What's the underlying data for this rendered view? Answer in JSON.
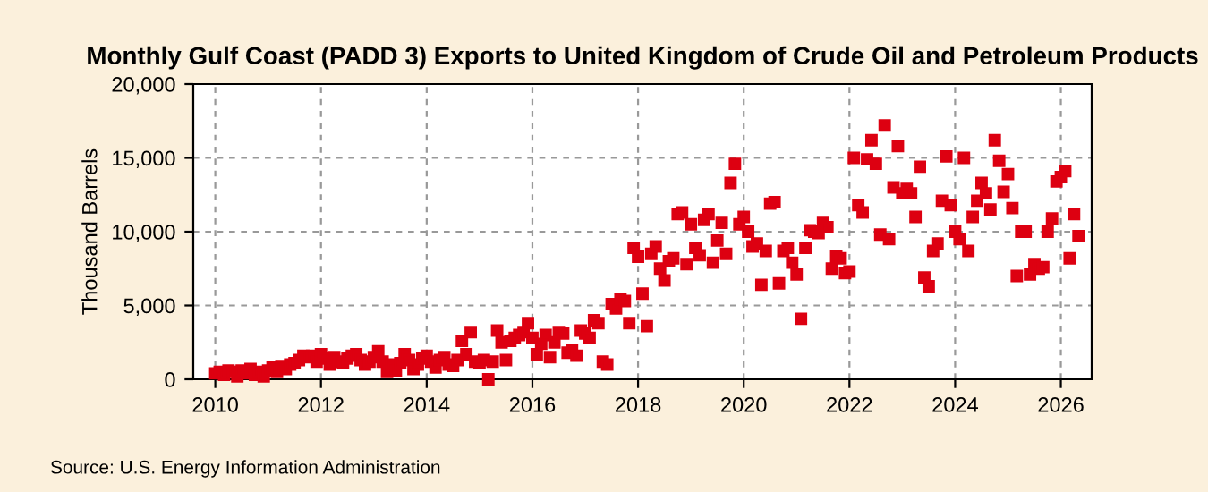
{
  "chart_data": {
    "type": "scatter",
    "title": "Monthly Gulf Coast (PADD 3) Exports to United Kingdom of Crude Oil and Petroleum Products",
    "ylabel": "Thousand Barrels",
    "annotations": [
      "Source: U.S. Energy Information Administration"
    ],
    "x": [
      "2010-01",
      "2010-02",
      "2010-03",
      "2010-04",
      "2010-05",
      "2010-06",
      "2010-07",
      "2010-08",
      "2010-09",
      "2010-10",
      "2010-11",
      "2010-12",
      "2011-01",
      "2011-02",
      "2011-03",
      "2011-04",
      "2011-05",
      "2011-06",
      "2011-07",
      "2011-08",
      "2011-09",
      "2011-10",
      "2011-11",
      "2011-12",
      "2012-01",
      "2012-02",
      "2012-03",
      "2012-04",
      "2012-05",
      "2012-06",
      "2012-07",
      "2012-08",
      "2012-09",
      "2012-10",
      "2012-11",
      "2012-12",
      "2013-01",
      "2013-02",
      "2013-03",
      "2013-04",
      "2013-05",
      "2013-06",
      "2013-07",
      "2013-08",
      "2013-09",
      "2013-10",
      "2013-11",
      "2013-12",
      "2014-01",
      "2014-02",
      "2014-03",
      "2014-04",
      "2014-05",
      "2014-06",
      "2014-07",
      "2014-08",
      "2014-09",
      "2014-10",
      "2014-11",
      "2014-12",
      "2015-01",
      "2015-02",
      "2015-03",
      "2015-04",
      "2015-05",
      "2015-06",
      "2015-07",
      "2015-08",
      "2015-09",
      "2015-10",
      "2015-11",
      "2015-12",
      "2016-01",
      "2016-02",
      "2016-03",
      "2016-04",
      "2016-05",
      "2016-06",
      "2016-07",
      "2016-08",
      "2016-09",
      "2016-10",
      "2016-11",
      "2016-12",
      "2017-01",
      "2017-02",
      "2017-03",
      "2017-04",
      "2017-05",
      "2017-06",
      "2017-07",
      "2017-08",
      "2017-09",
      "2017-10",
      "2017-11",
      "2017-12",
      "2018-01",
      "2018-02",
      "2018-03",
      "2018-04",
      "2018-05",
      "2018-06",
      "2018-07",
      "2018-08",
      "2018-09",
      "2018-10",
      "2018-11",
      "2018-12",
      "2019-01",
      "2019-02",
      "2019-03",
      "2019-04",
      "2019-05",
      "2019-06",
      "2019-07",
      "2019-08",
      "2019-09",
      "2019-10",
      "2019-11",
      "2019-12",
      "2020-01",
      "2020-02",
      "2020-03",
      "2020-04",
      "2020-05",
      "2020-06",
      "2020-07",
      "2020-08",
      "2020-09",
      "2020-10",
      "2020-11",
      "2020-12",
      "2021-01",
      "2021-02",
      "2021-03",
      "2021-04",
      "2021-05",
      "2021-06",
      "2021-07",
      "2021-08",
      "2021-09",
      "2021-10",
      "2021-11",
      "2021-12",
      "2022-01",
      "2022-02",
      "2022-03",
      "2022-04",
      "2022-05",
      "2022-06",
      "2022-07",
      "2022-08",
      "2022-09",
      "2022-10",
      "2022-11",
      "2022-12",
      "2023-01",
      "2023-02",
      "2023-03",
      "2023-04",
      "2023-05",
      "2023-06",
      "2023-07",
      "2023-08",
      "2023-09",
      "2023-10",
      "2023-11",
      "2023-12",
      "2024-01",
      "2024-02",
      "2024-03",
      "2024-04",
      "2024-05",
      "2024-06",
      "2024-07",
      "2024-08",
      "2024-09",
      "2024-10",
      "2024-11",
      "2024-12",
      "2025-01",
      "2025-02",
      "2025-03",
      "2025-04",
      "2025-05",
      "2025-06",
      "2025-07",
      "2025-08",
      "2025-09",
      "2025-10",
      "2025-11",
      "2025-12",
      "2026-01",
      "2026-02",
      "2026-03",
      "2026-04",
      "2026-05"
    ],
    "series": [
      {
        "color": "#dd0011",
        "values": [
          400,
          500,
          300,
          600,
          500,
          200,
          600,
          400,
          700,
          300,
          500,
          200,
          600,
          800,
          500,
          900,
          700,
          1000,
          1100,
          1300,
          1600,
          1500,
          1600,
          1200,
          1700,
          1400,
          1000,
          1500,
          1200,
          1100,
          1400,
          1600,
          1700,
          1300,
          1000,
          1200,
          1500,
          1900,
          1200,
          500,
          1000,
          600,
          1100,
          1700,
          1300,
          700,
          1000,
          1400,
          1600,
          1200,
          800,
          1300,
          1500,
          1000,
          900,
          1300,
          2600,
          1700,
          3200,
          1200,
          1100,
          1300,
          0,
          1200,
          3300,
          2500,
          1300,
          2600,
          2800,
          3000,
          3200,
          3800,
          2800,
          1700,
          2400,
          3000,
          1500,
          2500,
          3200,
          3100,
          1800,
          2000,
          1600,
          3300,
          3100,
          2800,
          4000,
          3800,
          1200,
          1000,
          5100,
          4800,
          5400,
          5300,
          3800,
          8900,
          8300,
          5800,
          3600,
          8500,
          9000,
          7500,
          6700,
          8000,
          8200,
          11200,
          11300,
          7800,
          10500,
          8900,
          8400,
          10800,
          11200,
          7900,
          9400,
          10600,
          8500,
          13300,
          14600,
          10500,
          11000,
          10000,
          9000,
          9200,
          6400,
          8700,
          11900,
          12000,
          6500,
          8700,
          8900,
          7900,
          7100,
          4100,
          8900,
          10100,
          10000,
          9900,
          10600,
          10300,
          7500,
          8300,
          8200,
          7200,
          7300,
          15000,
          11800,
          11300,
          14900,
          16200,
          14600,
          9800,
          17200,
          9500,
          13000,
          15800,
          12600,
          12900,
          12600,
          11000,
          14400,
          6900,
          6300,
          8700,
          9200,
          12100,
          15100,
          11800,
          10000,
          9500,
          15000,
          8700,
          11000,
          12100,
          13300,
          12600,
          11500,
          16200,
          14800,
          12700,
          13900,
          11600,
          7000,
          10000,
          10000,
          7100,
          7800,
          7500,
          7600,
          10000,
          10900,
          13400,
          13700,
          14100,
          8200,
          11200,
          9700
        ]
      }
    ],
    "xlim": [
      "2009-08",
      "2026-08"
    ],
    "xticks": [
      "2010",
      "2012",
      "2014",
      "2016",
      "2018",
      "2020",
      "2022",
      "2024",
      "2026"
    ],
    "ylim": [
      0,
      20000
    ],
    "yticks": [
      {
        "value": 0,
        "label": "0"
      },
      {
        "value": 5000,
        "label": "5,000"
      },
      {
        "value": 10000,
        "label": "10,000"
      },
      {
        "value": 15000,
        "label": "15,000"
      },
      {
        "value": 20000,
        "label": "20,000"
      }
    ],
    "grid": true,
    "marker": "square"
  }
}
